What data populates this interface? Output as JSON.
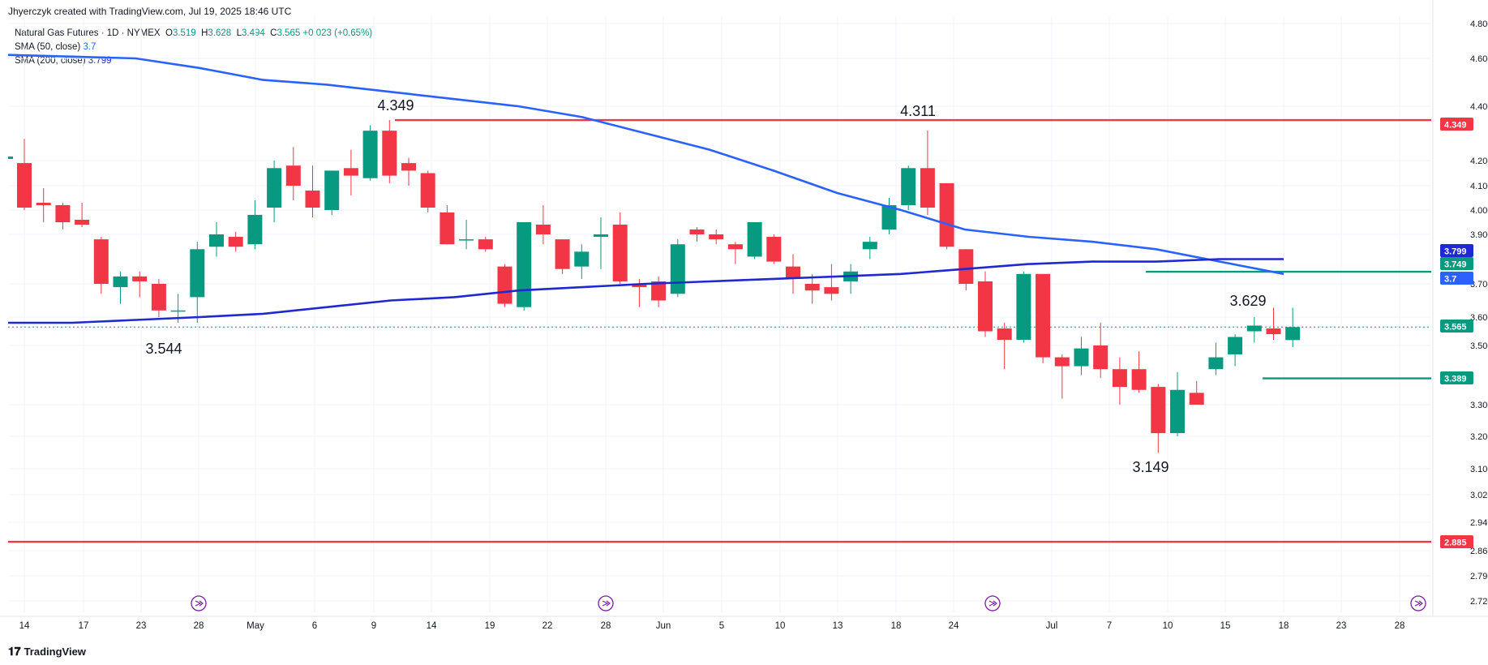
{
  "header": {
    "credit": "Jhyerczyk created with TradingView.com, Jul 19, 2025 18:46 UTC",
    "symbol": "Natural Gas Futures · 1D · NYMEX",
    "ohlc": {
      "o_label": "O",
      "o": "3.519",
      "h_label": "H",
      "h": "3.628",
      "l_label": "L",
      "l": "3.494",
      "c_label": "C",
      "c": "3.565",
      "change": "+0.023 (+0.65%)"
    },
    "sma50_label": "SMA (50, close)",
    "sma50_value": "3.7",
    "sma200_label": "SMA (200, close)",
    "sma200_value": "3.799"
  },
  "footer": {
    "brand": "TradingView"
  },
  "colors": {
    "up": "#089981",
    "down": "#f23645",
    "sma50": "#2962ff",
    "sma200": "#1f28d1",
    "red_line": "#f23645",
    "green_line": "#089981"
  },
  "chart_data": {
    "type": "candlestick",
    "y_range": [
      2.69,
      4.85
    ],
    "y_ticks": [
      4.8,
      4.6,
      4.4,
      4.2,
      4.1,
      4.0,
      3.9,
      3.7,
      3.6,
      3.5,
      3.3,
      3.2,
      3.1,
      3.02,
      2.94,
      2.86,
      2.79,
      2.72
    ],
    "x_ticks": [
      "14",
      "17",
      "23",
      "28",
      "May",
      "6",
      "9",
      "14",
      "19",
      "22",
      "28",
      "Jun",
      "5",
      "10",
      "13",
      "18",
      "24",
      "Jul",
      "7",
      "10",
      "15",
      "18",
      "23",
      "28"
    ],
    "candles": [
      {
        "o": 4.19,
        "h": 4.28,
        "l": 4.0,
        "c": 4.01
      },
      {
        "o": 4.03,
        "h": 4.09,
        "l": 3.95,
        "c": 4.02
      },
      {
        "o": 4.02,
        "h": 4.03,
        "l": 3.92,
        "c": 3.95
      },
      {
        "o": 3.96,
        "h": 4.03,
        "l": 3.93,
        "c": 3.94
      },
      {
        "o": 3.88,
        "h": 3.89,
        "l": 3.67,
        "c": 3.7
      },
      {
        "o": 3.69,
        "h": 3.75,
        "l": 3.64,
        "c": 3.73
      },
      {
        "o": 3.73,
        "h": 3.75,
        "l": 3.66,
        "c": 3.71
      },
      {
        "o": 3.7,
        "h": 3.72,
        "l": 3.6,
        "c": 3.62
      },
      {
        "o": 3.62,
        "h": 3.67,
        "l": 3.58,
        "c": 3.62
      },
      {
        "o": 3.66,
        "h": 3.87,
        "l": 3.58,
        "c": 3.84
      },
      {
        "o": 3.85,
        "h": 3.95,
        "l": 3.81,
        "c": 3.9
      },
      {
        "o": 3.89,
        "h": 3.91,
        "l": 3.83,
        "c": 3.85
      },
      {
        "o": 3.86,
        "h": 4.04,
        "l": 3.84,
        "c": 3.98
      },
      {
        "o": 4.01,
        "h": 4.2,
        "l": 3.95,
        "c": 4.17
      },
      {
        "o": 4.18,
        "h": 4.25,
        "l": 4.04,
        "c": 4.1
      },
      {
        "o": 4.08,
        "h": 4.18,
        "l": 3.97,
        "c": 4.01
      },
      {
        "o": 4.0,
        "h": 4.16,
        "l": 3.98,
        "c": 4.16
      },
      {
        "o": 4.17,
        "h": 4.24,
        "l": 4.06,
        "c": 4.14
      },
      {
        "o": 4.13,
        "h": 4.33,
        "l": 4.12,
        "c": 4.31
      },
      {
        "o": 4.31,
        "h": 4.349,
        "l": 4.11,
        "c": 4.14
      },
      {
        "o": 4.19,
        "h": 4.21,
        "l": 4.1,
        "c": 4.16
      },
      {
        "o": 4.15,
        "h": 4.16,
        "l": 3.99,
        "c": 4.01
      },
      {
        "o": 3.99,
        "h": 4.02,
        "l": 3.86,
        "c": 3.86
      },
      {
        "o": 3.88,
        "h": 3.96,
        "l": 3.84,
        "c": 3.88
      },
      {
        "o": 3.88,
        "h": 3.89,
        "l": 3.83,
        "c": 3.84
      },
      {
        "o": 3.77,
        "h": 3.78,
        "l": 3.63,
        "c": 3.64
      },
      {
        "o": 3.63,
        "h": 3.93,
        "l": 3.62,
        "c": 3.95
      },
      {
        "o": 3.94,
        "h": 4.02,
        "l": 3.86,
        "c": 3.9
      },
      {
        "o": 3.88,
        "h": 3.88,
        "l": 3.74,
        "c": 3.76
      },
      {
        "o": 3.77,
        "h": 3.86,
        "l": 3.72,
        "c": 3.83
      },
      {
        "o": 3.89,
        "h": 3.97,
        "l": 3.76,
        "c": 3.9
      },
      {
        "o": 3.94,
        "h": 3.99,
        "l": 3.7,
        "c": 3.71
      },
      {
        "o": 3.7,
        "h": 3.72,
        "l": 3.63,
        "c": 3.69
      },
      {
        "o": 3.71,
        "h": 3.73,
        "l": 3.63,
        "c": 3.65
      },
      {
        "o": 3.67,
        "h": 3.88,
        "l": 3.66,
        "c": 3.86
      },
      {
        "o": 3.92,
        "h": 3.93,
        "l": 3.87,
        "c": 3.9
      },
      {
        "o": 3.9,
        "h": 3.92,
        "l": 3.86,
        "c": 3.88
      },
      {
        "o": 3.86,
        "h": 3.87,
        "l": 3.78,
        "c": 3.84
      },
      {
        "o": 3.81,
        "h": 3.94,
        "l": 3.8,
        "c": 3.95
      },
      {
        "o": 3.89,
        "h": 3.9,
        "l": 3.78,
        "c": 3.79
      },
      {
        "o": 3.77,
        "h": 3.82,
        "l": 3.67,
        "c": 3.72
      },
      {
        "o": 3.7,
        "h": 3.74,
        "l": 3.64,
        "c": 3.68
      },
      {
        "o": 3.69,
        "h": 3.78,
        "l": 3.65,
        "c": 3.67
      },
      {
        "o": 3.71,
        "h": 3.78,
        "l": 3.67,
        "c": 3.75
      },
      {
        "o": 3.84,
        "h": 3.89,
        "l": 3.8,
        "c": 3.87
      },
      {
        "o": 3.92,
        "h": 4.05,
        "l": 3.9,
        "c": 4.02
      },
      {
        "o": 4.02,
        "h": 4.18,
        "l": 4.0,
        "c": 4.17
      },
      {
        "o": 4.17,
        "h": 4.311,
        "l": 3.98,
        "c": 4.01
      },
      {
        "o": 4.11,
        "h": 4.11,
        "l": 3.84,
        "c": 3.85
      },
      {
        "o": 3.84,
        "h": 3.84,
        "l": 3.68,
        "c": 3.7
      },
      {
        "o": 3.71,
        "h": 3.75,
        "l": 3.53,
        "c": 3.55
      },
      {
        "o": 3.56,
        "h": 3.58,
        "l": 3.42,
        "c": 3.52
      },
      {
        "o": 3.52,
        "h": 3.75,
        "l": 3.51,
        "c": 3.74
      },
      {
        "o": 3.74,
        "h": 3.74,
        "l": 3.44,
        "c": 3.46
      },
      {
        "o": 3.46,
        "h": 3.47,
        "l": 3.32,
        "c": 3.43
      },
      {
        "o": 3.43,
        "h": 3.53,
        "l": 3.4,
        "c": 3.49
      },
      {
        "o": 3.5,
        "h": 3.58,
        "l": 3.39,
        "c": 3.42
      },
      {
        "o": 3.42,
        "h": 3.46,
        "l": 3.3,
        "c": 3.36
      },
      {
        "o": 3.42,
        "h": 3.48,
        "l": 3.34,
        "c": 3.35
      },
      {
        "o": 3.36,
        "h": 3.37,
        "l": 3.149,
        "c": 3.21
      },
      {
        "o": 3.21,
        "h": 3.41,
        "l": 3.2,
        "c": 3.35
      },
      {
        "o": 3.34,
        "h": 3.38,
        "l": 3.3,
        "c": 3.3
      },
      {
        "o": 3.42,
        "h": 3.51,
        "l": 3.4,
        "c": 3.46
      },
      {
        "o": 3.47,
        "h": 3.54,
        "l": 3.43,
        "c": 3.53
      },
      {
        "o": 3.55,
        "h": 3.6,
        "l": 3.51,
        "c": 3.57
      },
      {
        "o": 3.56,
        "h": 3.628,
        "l": 3.52,
        "c": 3.54
      },
      {
        "o": 3.519,
        "h": 3.628,
        "l": 3.494,
        "c": 3.565
      }
    ],
    "sma50": [
      4.62,
      4.61,
      4.6,
      4.56,
      4.51,
      4.49,
      4.46,
      4.43,
      4.4,
      4.36,
      4.3,
      4.24,
      4.16,
      4.07,
      4.0,
      3.92,
      3.89,
      3.87,
      3.84,
      3.79,
      3.74
    ],
    "sma200": [
      3.58,
      3.58,
      3.59,
      3.6,
      3.61,
      3.63,
      3.65,
      3.66,
      3.68,
      3.69,
      3.7,
      3.71,
      3.72,
      3.73,
      3.74,
      3.76,
      3.78,
      3.79,
      3.79,
      3.8,
      3.8
    ],
    "annotations": [
      {
        "text": "4.349",
        "kind": "high"
      },
      {
        "text": "3.544",
        "kind": "low"
      },
      {
        "text": "4.311",
        "kind": "high"
      },
      {
        "text": "3.629",
        "kind": "high"
      },
      {
        "text": "3.149",
        "kind": "low"
      }
    ],
    "levels": [
      {
        "value": 4.349,
        "label": "4.349",
        "color": "#f23645"
      },
      {
        "value": 3.749,
        "label": "3.749",
        "color": "#089981"
      },
      {
        "value": 3.389,
        "label": "3.389",
        "color": "#089981"
      },
      {
        "value": 2.885,
        "label": "2.885",
        "color": "#f23645"
      }
    ],
    "price_labels": [
      {
        "value": 3.799,
        "label": "3.799",
        "color": "#1f28d1"
      },
      {
        "value": 3.7,
        "label": "3.7",
        "color": "#2962ff"
      },
      {
        "value": 3.565,
        "label": "3.565",
        "color": "#089981"
      }
    ]
  }
}
